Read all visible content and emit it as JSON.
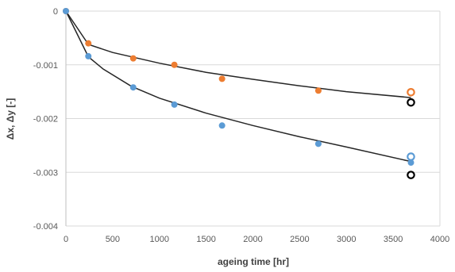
{
  "chart_data": {
    "type": "scatter",
    "title": "",
    "xlabel": "ageing time [hr]",
    "ylabel": "Δx, Δy [-]",
    "xlim": [
      0,
      4000
    ],
    "ylim": [
      -0.004,
      0
    ],
    "x_ticks": [
      0,
      500,
      1000,
      1500,
      2000,
      2500,
      3000,
      3500,
      4000
    ],
    "x_tick_labels": [
      "0",
      "500",
      "1000",
      "1500",
      "2000",
      "2500",
      "3000",
      "3500",
      "4000"
    ],
    "y_ticks": [
      0,
      -0.001,
      -0.002,
      -0.003,
      -0.004
    ],
    "y_tick_labels": [
      "0",
      "-0.001",
      "-0.002",
      "-0.003",
      "-0.004"
    ],
    "grid": "horizontal",
    "legend": "none",
    "series": [
      {
        "marker": "filled-circle",
        "color": "#ED7D31",
        "points": [
          {
            "x": 0,
            "y": 0
          },
          {
            "x": 240,
            "y": -0.0006
          },
          {
            "x": 720,
            "y": -0.00088
          },
          {
            "x": 1160,
            "y": -0.001
          },
          {
            "x": 1670,
            "y": -0.00126
          },
          {
            "x": 2700,
            "y": -0.00148
          }
        ]
      },
      {
        "marker": "filled-circle",
        "color": "#5B9BD5",
        "points": [
          {
            "x": 0,
            "y": 0
          },
          {
            "x": 240,
            "y": -0.00084
          },
          {
            "x": 720,
            "y": -0.00142
          },
          {
            "x": 1160,
            "y": -0.00174
          },
          {
            "x": 1670,
            "y": -0.00213
          },
          {
            "x": 2700,
            "y": -0.00247
          },
          {
            "x": 3690,
            "y": -0.00282
          }
        ]
      },
      {
        "marker": "open-circle",
        "color": "#ED7D31",
        "points": [
          {
            "x": 3690,
            "y": -0.00151
          }
        ]
      },
      {
        "marker": "open-circle",
        "color": "#5B9BD5",
        "points": [
          {
            "x": 3690,
            "y": -0.00271
          }
        ]
      },
      {
        "marker": "open-circle",
        "color": "#000000",
        "points": [
          {
            "x": 3690,
            "y": -0.0017
          },
          {
            "x": 3690,
            "y": -0.00305
          }
        ]
      }
    ],
    "fit_curves": [
      {
        "color": "#262626",
        "points": [
          {
            "x": 0,
            "y": 0
          },
          {
            "x": 240,
            "y": -0.00062
          },
          {
            "x": 500,
            "y": -0.00077
          },
          {
            "x": 1000,
            "y": -0.00097
          },
          {
            "x": 1500,
            "y": -0.00114
          },
          {
            "x": 2000,
            "y": -0.00127
          },
          {
            "x": 2500,
            "y": -0.00139
          },
          {
            "x": 3000,
            "y": -0.0015
          },
          {
            "x": 3690,
            "y": -0.00161
          }
        ]
      },
      {
        "color": "#262626",
        "points": [
          {
            "x": 0,
            "y": 0
          },
          {
            "x": 240,
            "y": -0.00085
          },
          {
            "x": 400,
            "y": -0.00108
          },
          {
            "x": 700,
            "y": -0.0014
          },
          {
            "x": 1000,
            "y": -0.00162
          },
          {
            "x": 1500,
            "y": -0.0019
          },
          {
            "x": 2000,
            "y": -0.00213
          },
          {
            "x": 2500,
            "y": -0.00234
          },
          {
            "x": 3000,
            "y": -0.00253
          },
          {
            "x": 3690,
            "y": -0.0028
          }
        ]
      }
    ]
  }
}
